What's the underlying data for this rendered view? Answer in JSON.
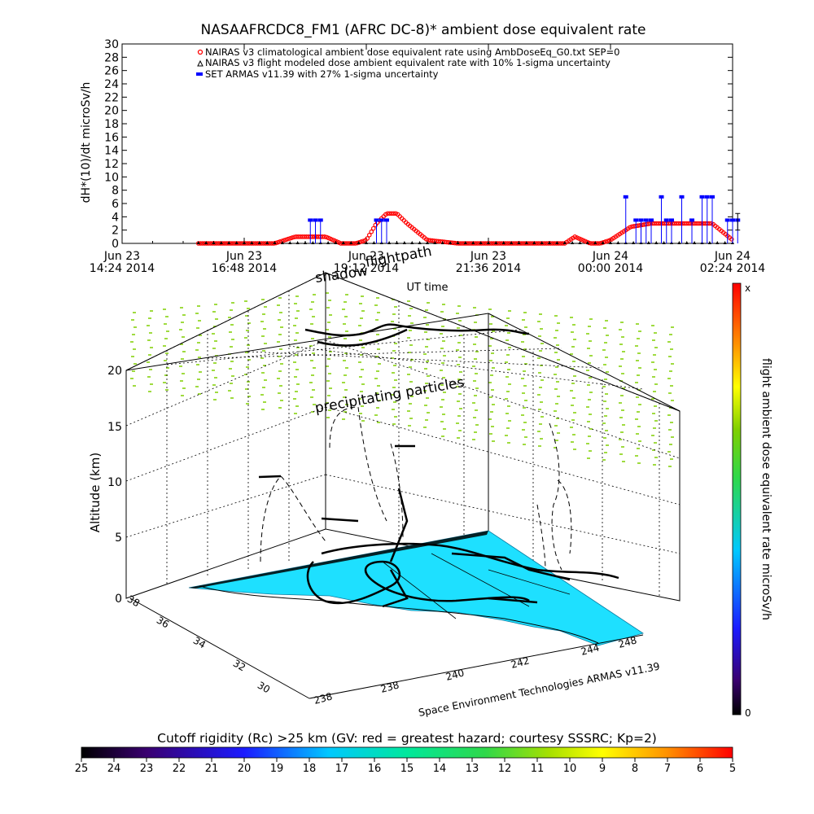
{
  "colors": {
    "nairas_climatological": "#ff0000",
    "nairas_modeled": "#000000",
    "armas": "#0000ff",
    "ground": "#1ee0ff",
    "particles": "#7fcf00"
  },
  "labels": {
    "watermark": "Space Environment Technologies ARMAS v11.39",
    "shadow_label": "shadow",
    "flightpath_label": "flightpath",
    "precip_label": "precipitating particles",
    "alt_title": "Altitude (km)",
    "alt_ticks": [
      "0",
      "5",
      "10",
      "15",
      "20"
    ],
    "lat_ticks": [
      "30",
      "32",
      "34",
      "36",
      "38"
    ],
    "lon_ticks": [
      "238",
      "238",
      "240",
      "242",
      "244",
      "248"
    ],
    "colorbar_title": "flight ambient dose equivalent rate microSv/h",
    "colorbar_top": "x",
    "colorbar_bottom": "0",
    "rc_title": "Cutoff rigidity (Rc) >25 km (GV: red = greatest hazard; courtesy SSSRC; Kp=2)",
    "rc_ticks": [
      "25",
      "24",
      "23",
      "22",
      "21",
      "20",
      "19",
      "18",
      "17",
      "16",
      "15",
      "14",
      "13",
      "12",
      "11",
      "10",
      "9",
      "8",
      "7",
      "6",
      "5"
    ]
  },
  "chart_data": [
    {
      "type": "line",
      "title": "NASAAFRCDC8_FM1 (AFRC DC-8)* ambient dose equivalent rate",
      "ylabel": "dH*(10)/dt microSv/h",
      "xlabel": "UT time",
      "ylim": [
        0,
        30
      ],
      "yticks": [
        "0",
        "2",
        "4",
        "6",
        "8",
        "10",
        "12",
        "14",
        "16",
        "18",
        "20",
        "22",
        "24",
        "26",
        "28",
        "30"
      ],
      "xlim": [
        "Jun 23 14:24 2014",
        "Jun 24 02:24 2014"
      ],
      "xticks": [
        {
          "day": "Jun 23",
          "time": "14:24 2014"
        },
        {
          "day": "Jun 23",
          "time": "16:48 2014"
        },
        {
          "day": "Jun 23",
          "time": "19:12 2014"
        },
        {
          "day": "Jun 23",
          "time": "21:36 2014"
        },
        {
          "day": "Jun 24",
          "time": "00:00 2014"
        },
        {
          "day": "Jun 24",
          "time": "02:24 2014"
        }
      ],
      "legend": {
        "placement": "top-center",
        "entries": [
          "NAIRAS v3 climatological ambient dose equivalent rate using AmbDoseEq_G0.txt SEP=0",
          "NAIRAS v3 flight modeled dose ambient equivalent rate with 10% 1-sigma uncertainty",
          "SET ARMAS v11.39 with 27% 1-sigma uncertainty"
        ]
      },
      "series": [
        {
          "name": "NAIRAS v3 climatological ambient dose equivalent rate using AmbDoseEq_G0.txt SEP=0",
          "x_hours": [
            15.9,
            16.6,
            17.0,
            17.4,
            17.8,
            18.2,
            18.4,
            18.7,
            19.0,
            19.2,
            19.4,
            19.6,
            19.8,
            20.0,
            20.4,
            21.0,
            21.6,
            22.2,
            22.8,
            23.1,
            23.3,
            23.6,
            23.8,
            24.0,
            24.4,
            24.8,
            25.0,
            25.2,
            25.4,
            25.8,
            26.0,
            26.4
          ],
          "values": [
            0,
            0,
            0,
            0,
            1,
            1,
            1,
            0,
            0,
            0.5,
            3,
            4.5,
            4.5,
            3,
            0.5,
            0,
            0,
            0,
            0,
            0,
            1,
            0,
            0,
            0.5,
            2.5,
            3,
            3,
            3,
            3,
            3,
            3,
            0.5
          ]
        },
        {
          "name": "NAIRAS v3 flight modeled dose ambient equivalent rate with 10% 1-sigma uncertainty",
          "x_hours": [
            15.9,
            17.0,
            18.0,
            19.0,
            20.0,
            21.0,
            22.0,
            23.0,
            24.0,
            25.0,
            26.0,
            26.4
          ],
          "values": [
            0,
            0,
            0,
            0,
            0,
            0,
            0,
            0,
            0,
            0,
            0,
            0
          ]
        },
        {
          "name": "SET ARMAS v11.39 with 27% 1-sigma uncertainty",
          "x_hours": [
            18.1,
            18.2,
            18.3,
            19.4,
            19.5,
            19.6,
            24.3,
            24.5,
            24.6,
            24.7,
            24.8,
            25.0,
            25.1,
            25.2,
            25.4,
            25.6,
            25.8,
            25.9,
            26.0,
            26.3,
            26.4,
            26.5
          ],
          "values": [
            3.5,
            3.5,
            3.5,
            3.5,
            3.5,
            3.5,
            7,
            3.5,
            3.5,
            3.5,
            3.5,
            7,
            3.5,
            3.5,
            7,
            3.5,
            7,
            7,
            7,
            3.5,
            3.5,
            3.5
          ]
        }
      ],
      "error_bar": {
        "x_hours": 26.5,
        "value": 3.5,
        "low": 2,
        "high": 4.5
      }
    },
    {
      "type": "scatter",
      "description_axes": {
        "zlabel": "Altitude (km)",
        "xrange_lon": [
          238,
          248
        ],
        "yrange_lat": [
          30,
          38
        ],
        "zrange_km": [
          0,
          20
        ]
      },
      "colorbar": {
        "min": "0",
        "max": "x",
        "title": "flight ambient dose equivalent rate microSv/h"
      }
    },
    {
      "type": "heatmap",
      "title": "Cutoff rigidity (Rc) >25 km (GV: red = greatest hazard; courtesy SSSRC; Kp=2)",
      "range": [
        25,
        5
      ],
      "ticks": [
        "25",
        "24",
        "23",
        "22",
        "21",
        "20",
        "19",
        "18",
        "17",
        "16",
        "15",
        "14",
        "13",
        "12",
        "11",
        "10",
        "9",
        "8",
        "7",
        "6",
        "5"
      ]
    }
  ]
}
